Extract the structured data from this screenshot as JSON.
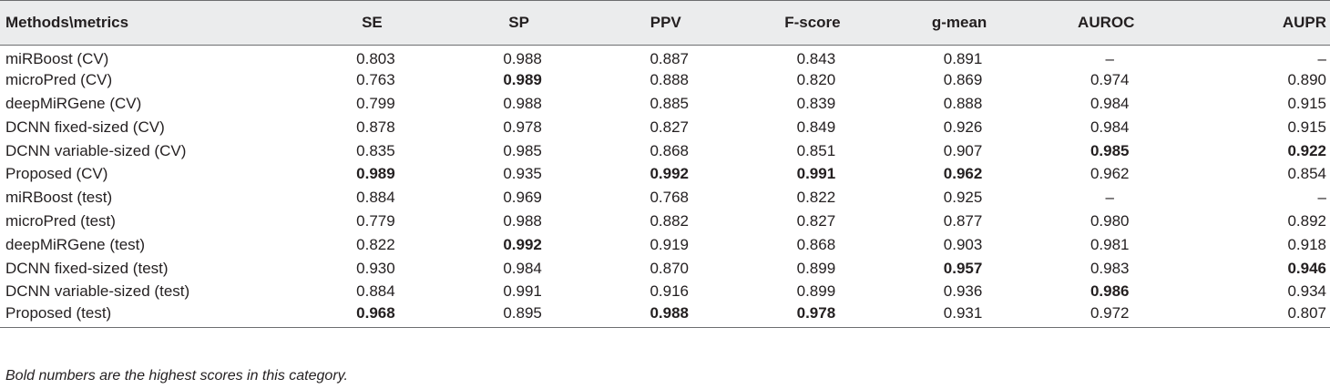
{
  "table": {
    "header": [
      "Methods\\metrics",
      "SE",
      "SP",
      "PPV",
      "F-score",
      "g-mean",
      "AUROC",
      "AUPR"
    ],
    "rows": [
      {
        "method": "miRBoost (CV)",
        "values": [
          "0.803",
          "0.988",
          "0.887",
          "0.843",
          "0.891",
          "–",
          "–"
        ],
        "bold": []
      },
      {
        "method": "microPred (CV)",
        "values": [
          "0.763",
          "0.989",
          "0.888",
          "0.820",
          "0.869",
          "0.974",
          "0.890"
        ],
        "bold": [
          1
        ]
      },
      {
        "method": "deepMiRGene (CV)",
        "values": [
          "0.799",
          "0.988",
          "0.885",
          "0.839",
          "0.888",
          "0.984",
          "0.915"
        ],
        "bold": []
      },
      {
        "method": "DCNN fixed-sized (CV)",
        "values": [
          "0.878",
          "0.978",
          "0.827",
          "0.849",
          "0.926",
          "0.984",
          "0.915"
        ],
        "bold": []
      },
      {
        "method": "DCNN variable-sized (CV)",
        "values": [
          "0.835",
          "0.985",
          "0.868",
          "0.851",
          "0.907",
          "0.985",
          "0.922"
        ],
        "bold": [
          5,
          6
        ]
      },
      {
        "method": "Proposed (CV)",
        "values": [
          "0.989",
          "0.935",
          "0.992",
          "0.991",
          "0.962",
          "0.962",
          "0.854"
        ],
        "bold": [
          0,
          2,
          3,
          4
        ]
      },
      {
        "method": "miRBoost (test)",
        "values": [
          "0.884",
          "0.969",
          "0.768",
          "0.822",
          "0.925",
          "–",
          "–"
        ],
        "bold": []
      },
      {
        "method": "microPred (test)",
        "values": [
          "0.779",
          "0.988",
          "0.882",
          "0.827",
          "0.877",
          "0.980",
          "0.892"
        ],
        "bold": []
      },
      {
        "method": "deepMiRGene (test)",
        "values": [
          "0.822",
          "0.992",
          "0.919",
          "0.868",
          "0.903",
          "0.981",
          "0.918"
        ],
        "bold": [
          1
        ]
      },
      {
        "method": "DCNN fixed-sized (test)",
        "values": [
          "0.930",
          "0.984",
          "0.870",
          "0.899",
          "0.957",
          "0.983",
          "0.946"
        ],
        "bold": [
          4,
          6
        ]
      },
      {
        "method": "DCNN variable-sized (test)",
        "values": [
          "0.884",
          "0.991",
          "0.916",
          "0.899",
          "0.936",
          "0.986",
          "0.934"
        ],
        "bold": [
          5
        ]
      },
      {
        "method": "Proposed (test)",
        "values": [
          "0.968",
          "0.895",
          "0.988",
          "0.978",
          "0.931",
          "0.972",
          "0.807"
        ],
        "bold": [
          0,
          2,
          3
        ]
      }
    ]
  },
  "footnote": "Bold numbers are the highest scores in this category.",
  "colors": {
    "header_bg": "#ebeced",
    "text": "#231f20",
    "rule": "#6d6e70"
  }
}
